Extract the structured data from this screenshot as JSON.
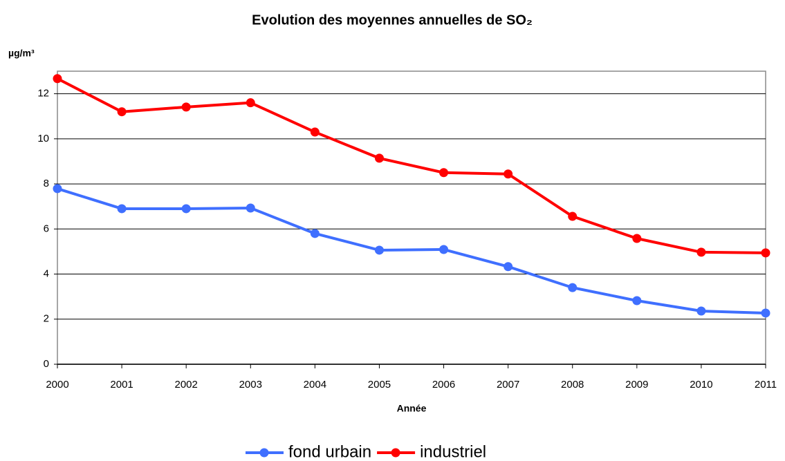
{
  "chart_data": {
    "type": "line",
    "title": "Evolution des moyennes annuelles de SO₂",
    "y_label": "µg/m³",
    "x_label": "Année",
    "x": [
      2000,
      2001,
      2002,
      2003,
      2004,
      2005,
      2006,
      2007,
      2008,
      2009,
      2010,
      2011
    ],
    "series": [
      {
        "name": "fond urbain",
        "color": "#3f6fff",
        "values": [
          7.79,
          6.9,
          6.9,
          6.93,
          5.8,
          5.06,
          5.09,
          4.33,
          3.4,
          2.82,
          2.36,
          2.27
        ]
      },
      {
        "name": "industriel",
        "color": "#ff0000",
        "values": [
          12.67,
          11.2,
          11.41,
          11.6,
          10.3,
          9.14,
          8.5,
          8.44,
          6.56,
          5.58,
          4.97,
          4.94
        ]
      }
    ],
    "xlim": [
      2000,
      2011
    ],
    "xticks": [
      2000,
      2001,
      2002,
      2003,
      2004,
      2005,
      2006,
      2007,
      2008,
      2009,
      2010,
      2011
    ],
    "ylim": [
      0,
      13
    ],
    "yticks": [
      0,
      2,
      4,
      6,
      8,
      10,
      12
    ],
    "grid": true,
    "legend": "bottom"
  }
}
